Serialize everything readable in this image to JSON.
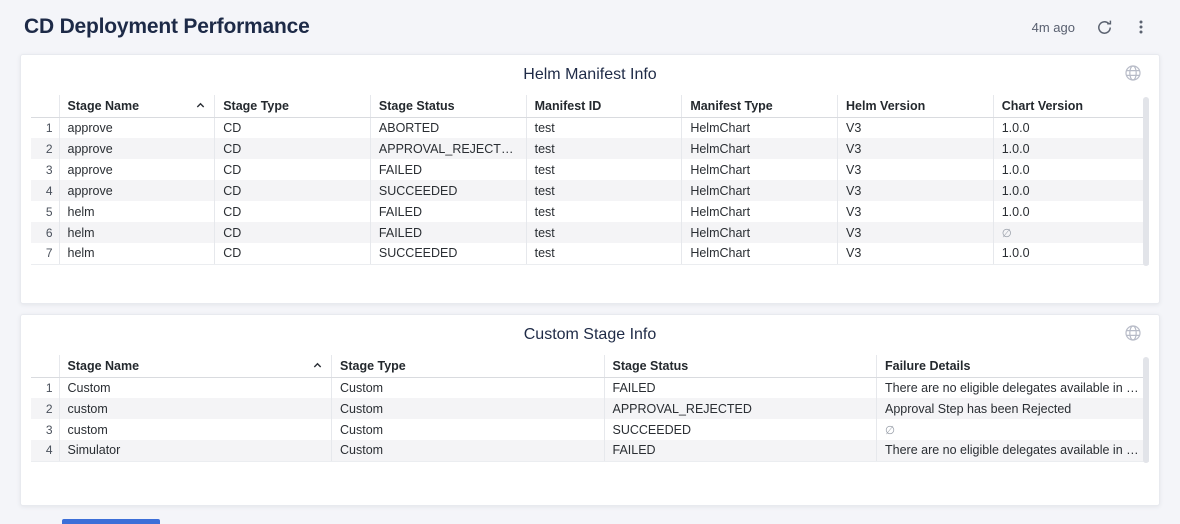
{
  "page": {
    "title": "CD Deployment Performance",
    "refreshed_ago": "4m ago"
  },
  "icons": {
    "refresh": "refresh-icon",
    "kebab_menu": "kebab-menu-icon",
    "globe": "globe-icon",
    "sort_ascending": "chevron-up-icon"
  },
  "null_symbol": "∅",
  "panels": [
    {
      "title": "Helm Manifest Info",
      "sorted_column": "Stage Name",
      "sort_direction": "asc",
      "columns": [
        "Stage Name",
        "Stage Type",
        "Stage Status",
        "Manifest ID",
        "Manifest Type",
        "Helm Version",
        "Chart Version"
      ],
      "rows": [
        [
          "approve",
          "CD",
          "ABORTED",
          "test",
          "HelmChart",
          "V3",
          "1.0.0"
        ],
        [
          "approve",
          "CD",
          "APPROVAL_REJECTED",
          "test",
          "HelmChart",
          "V3",
          "1.0.0"
        ],
        [
          "approve",
          "CD",
          "FAILED",
          "test",
          "HelmChart",
          "V3",
          "1.0.0"
        ],
        [
          "approve",
          "CD",
          "SUCCEEDED",
          "test",
          "HelmChart",
          "V3",
          "1.0.0"
        ],
        [
          "helm",
          "CD",
          "FAILED",
          "test",
          "HelmChart",
          "V3",
          "1.0.0"
        ],
        [
          "helm",
          "CD",
          "FAILED",
          "test",
          "HelmChart",
          "V3",
          "∅"
        ],
        [
          "helm",
          "CD",
          "SUCCEEDED",
          "test",
          "HelmChart",
          "V3",
          "1.0.0"
        ]
      ]
    },
    {
      "title": "Custom Stage Info",
      "sorted_column": "Stage Name",
      "sort_direction": "asc",
      "columns": [
        "Stage Name",
        "Stage Type",
        "Stage Status",
        "Failure Details"
      ],
      "rows": [
        [
          "Custom",
          "Custom",
          "FAILED",
          "There are no eligible delegates available in the …"
        ],
        [
          "custom",
          "Custom",
          "APPROVAL_REJECTED",
          "Approval Step has been Rejected"
        ],
        [
          "custom",
          "Custom",
          "SUCCEEDED",
          "∅"
        ],
        [
          "Simulator",
          "Custom",
          "FAILED",
          "There are no eligible delegates available in the …"
        ]
      ]
    }
  ]
}
